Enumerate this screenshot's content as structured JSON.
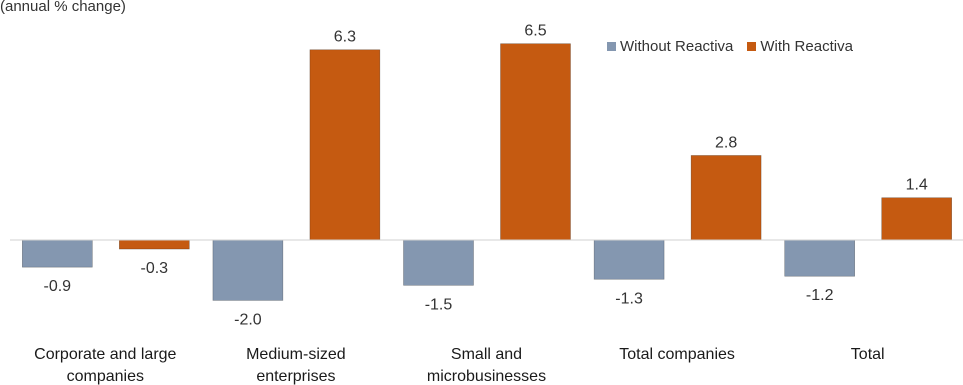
{
  "chart_data": {
    "type": "bar",
    "subtitle": "(annual % change)",
    "categories": [
      [
        "Corporate and large",
        "companies"
      ],
      [
        "Medium-sized",
        "enterprises"
      ],
      [
        "Small and",
        "microbusinesses"
      ],
      [
        "Total companies"
      ],
      [
        "Total"
      ]
    ],
    "series": [
      {
        "name": "Without Reactiva",
        "color": "#8497b0",
        "values": [
          -0.9,
          -2.0,
          -1.5,
          -1.3,
          -1.2
        ],
        "labels": [
          "-0.9",
          "-2.0",
          "-1.5",
          "-1.3",
          "-1.2"
        ]
      },
      {
        "name": "With Reactiva",
        "color": "#c55a11",
        "values": [
          -0.3,
          6.3,
          6.5,
          2.8,
          1.4
        ],
        "labels": [
          "-0.3",
          "6.3",
          "6.5",
          "2.8",
          "1.4"
        ]
      }
    ],
    "ylim": [
      -2.5,
      7.0
    ],
    "legend_position": "top-right",
    "grid": false
  }
}
